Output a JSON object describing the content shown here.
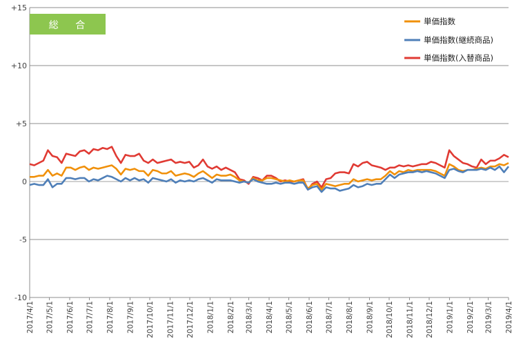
{
  "chart_data": {
    "type": "line",
    "badge": {
      "label": "総 合",
      "color": "#8dc64f"
    },
    "ylim": [
      -10,
      15
    ],
    "y_ticks": [
      {
        "value": 15,
        "label": "+15"
      },
      {
        "value": 10,
        "label": "+10"
      },
      {
        "value": 5,
        "label": "+5"
      },
      {
        "value": 0,
        "label": "0"
      },
      {
        "value": -5,
        "label": "-5"
      },
      {
        "value": -10,
        "label": "-10"
      }
    ],
    "x_start": "2017-04-01",
    "x_end": "2019-04-01",
    "x_ticks": [
      "2017/4/1",
      "2017/5/1",
      "2017/6/1",
      "2017/7/1",
      "2017/8/1",
      "2017/9/1",
      "2017/10/1",
      "2017/11/1",
      "2017/12/1",
      "2018/1/1",
      "2018/2/1",
      "2018/3/1",
      "2018/4/1",
      "2018/5/1",
      "2018/6/1",
      "2018/7/1",
      "2018/8/1",
      "2018/9/1",
      "2018/10/1",
      "2018/11/1",
      "2018/12/1",
      "2019/1/1",
      "2019/2/1",
      "2019/3/1",
      "2019/4/1"
    ],
    "legend_position": "top-right",
    "series": [
      {
        "name": "単価指数",
        "color": "#f0900a",
        "values": [
          0.4,
          0.4,
          0.5,
          0.5,
          1.0,
          0.5,
          0.7,
          0.5,
          1.2,
          1.2,
          1.0,
          1.2,
          1.3,
          1.0,
          1.2,
          1.1,
          1.2,
          1.3,
          1.4,
          1.1,
          0.6,
          1.1,
          1.0,
          1.1,
          0.9,
          0.9,
          0.5,
          1.0,
          0.9,
          0.7,
          0.7,
          0.9,
          0.5,
          0.6,
          0.7,
          0.6,
          0.4,
          0.7,
          0.9,
          0.6,
          0.3,
          0.6,
          0.5,
          0.5,
          0.6,
          0.4,
          0.1,
          0.0,
          -0.1,
          0.3,
          0.1,
          0.1,
          0.3,
          0.3,
          0.2,
          0.1,
          0.0,
          0.1,
          0.0,
          0.1,
          0.1,
          -0.6,
          -0.3,
          -0.2,
          -0.7,
          -0.2,
          -0.3,
          -0.4,
          -0.3,
          -0.2,
          -0.2,
          0.2,
          0.0,
          0.1,
          0.2,
          0.1,
          0.2,
          0.2,
          0.5,
          0.9,
          0.6,
          0.9,
          0.8,
          1.0,
          0.9,
          1.0,
          1.0,
          1.0,
          1.0,
          0.9,
          0.7,
          0.5,
          1.5,
          1.3,
          1.0,
          0.9,
          1.0,
          1.0,
          1.1,
          1.2,
          1.1,
          1.3,
          1.3,
          1.5,
          1.4,
          1.6
        ]
      },
      {
        "name": "単価指数(継続商品)",
        "color": "#4f7fb8",
        "values": [
          -0.3,
          -0.2,
          -0.3,
          -0.3,
          0.2,
          -0.5,
          -0.2,
          -0.2,
          0.3,
          0.3,
          0.2,
          0.3,
          0.3,
          0.0,
          0.2,
          0.1,
          0.3,
          0.5,
          0.4,
          0.2,
          0.0,
          0.3,
          0.1,
          0.3,
          0.1,
          0.2,
          -0.1,
          0.3,
          0.2,
          0.1,
          0.0,
          0.2,
          -0.1,
          0.1,
          0.0,
          0.1,
          0.0,
          0.2,
          0.3,
          0.1,
          -0.1,
          0.2,
          0.1,
          0.1,
          0.1,
          0.0,
          -0.1,
          0.0,
          -0.1,
          0.2,
          0.0,
          -0.1,
          -0.2,
          -0.2,
          -0.1,
          -0.2,
          -0.1,
          -0.1,
          -0.2,
          -0.1,
          -0.1,
          -0.7,
          -0.5,
          -0.4,
          -0.9,
          -0.5,
          -0.6,
          -0.6,
          -0.8,
          -0.7,
          -0.6,
          -0.3,
          -0.5,
          -0.4,
          -0.2,
          -0.3,
          -0.2,
          -0.2,
          0.2,
          0.6,
          0.3,
          0.6,
          0.7,
          0.8,
          0.8,
          0.9,
          0.8,
          0.9,
          0.8,
          0.7,
          0.5,
          0.3,
          1.0,
          1.1,
          0.9,
          0.8,
          1.0,
          1.0,
          1.0,
          1.1,
          1.0,
          1.2,
          1.0,
          1.3,
          0.8,
          1.3
        ]
      },
      {
        "name": "単価指数(入替商品)",
        "color": "#e03a33",
        "values": [
          1.5,
          1.4,
          1.6,
          1.8,
          2.7,
          2.2,
          2.1,
          1.6,
          2.4,
          2.3,
          2.2,
          2.6,
          2.7,
          2.4,
          2.8,
          2.7,
          2.9,
          2.8,
          3.0,
          2.2,
          1.6,
          2.3,
          2.2,
          2.2,
          2.4,
          1.8,
          1.6,
          1.9,
          1.6,
          1.7,
          1.8,
          1.9,
          1.6,
          1.7,
          1.6,
          1.7,
          1.2,
          1.4,
          1.9,
          1.3,
          1.1,
          1.3,
          1.0,
          1.2,
          1.0,
          0.8,
          0.2,
          0.1,
          -0.2,
          0.4,
          0.3,
          0.1,
          0.5,
          0.5,
          0.3,
          0.0,
          0.1,
          0.0,
          0.0,
          0.1,
          0.2,
          -0.7,
          -0.2,
          0.0,
          -0.5,
          0.2,
          0.3,
          0.7,
          0.8,
          0.8,
          0.7,
          1.5,
          1.3,
          1.6,
          1.7,
          1.4,
          1.3,
          1.2,
          1.0,
          1.2,
          1.2,
          1.4,
          1.3,
          1.4,
          1.3,
          1.4,
          1.5,
          1.5,
          1.7,
          1.6,
          1.4,
          1.2,
          2.7,
          2.2,
          1.9,
          1.6,
          1.5,
          1.3,
          1.2,
          1.9,
          1.5,
          1.8,
          1.8,
          2.0,
          2.3,
          2.1
        ]
      }
    ]
  }
}
